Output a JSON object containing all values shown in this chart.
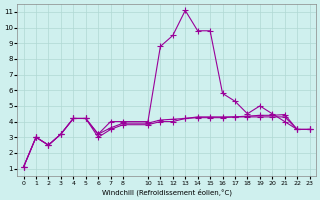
{
  "xlabel": "Windchill (Refroidissement éolien,°C)",
  "ylabel": "",
  "background_color": "#cff0ee",
  "grid_color": "#b0d8d4",
  "line_color": "#990099",
  "x_values": [
    0,
    1,
    2,
    3,
    4,
    5,
    6,
    7,
    8,
    10,
    11,
    12,
    13,
    14,
    15,
    16,
    17,
    18,
    19,
    20,
    21,
    22,
    23
  ],
  "series1": [
    1.1,
    3.0,
    2.5,
    3.2,
    4.2,
    4.2,
    3.2,
    4.0,
    4.0,
    4.0,
    8.8,
    9.5,
    11.1,
    9.8,
    9.8,
    5.8,
    5.3,
    4.5,
    5.0,
    4.5,
    4.0,
    3.5,
    3.5
  ],
  "series2": [
    1.1,
    3.0,
    2.5,
    3.2,
    4.2,
    4.2,
    3.0,
    3.5,
    3.8,
    3.8,
    4.0,
    4.0,
    4.2,
    4.3,
    4.3,
    4.3,
    4.3,
    4.3,
    4.3,
    4.3,
    4.3,
    3.5,
    3.5
  ],
  "series3": [
    1.1,
    3.0,
    2.5,
    3.2,
    4.2,
    4.2,
    3.2,
    3.6,
    3.9,
    3.9,
    4.1,
    4.15,
    4.2,
    4.25,
    4.25,
    4.25,
    4.3,
    4.35,
    4.4,
    4.4,
    4.45,
    3.5,
    3.5
  ],
  "xlim": [
    -0.5,
    23.5
  ],
  "ylim": [
    0.5,
    11.5
  ],
  "yticks": [
    1,
    2,
    3,
    4,
    5,
    6,
    7,
    8,
    9,
    10,
    11
  ],
  "xticks": [
    0,
    1,
    2,
    3,
    4,
    5,
    6,
    7,
    8,
    10,
    11,
    12,
    13,
    14,
    15,
    16,
    17,
    18,
    19,
    20,
    21,
    22,
    23
  ]
}
